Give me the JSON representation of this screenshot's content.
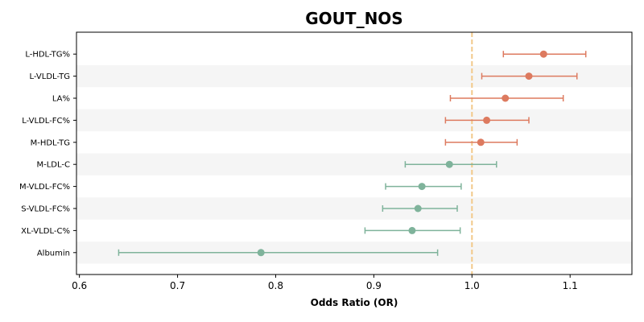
{
  "chart_data": {
    "type": "scatter",
    "subtype": "forest-plot",
    "title": "GOUT_NOS",
    "xlabel": "Odds Ratio (OR)",
    "ylabel": "",
    "xlim": [
      0.597,
      1.163
    ],
    "xticks": [
      0.6,
      0.7,
      0.8,
      0.9,
      1.0,
      1.1
    ],
    "xtick_labels": [
      "0.6",
      "0.7",
      "0.8",
      "0.9",
      "1.0",
      "1.1"
    ],
    "reference_line": 1.0,
    "reference_line_style": "dashed",
    "alternating_row_shading": true,
    "grid": false,
    "legend": "none",
    "colors": {
      "positive": "#dd7a5f",
      "negative": "#7fb39b",
      "reference": "#f2c98a",
      "band": "#f5f5f5"
    },
    "series": [
      {
        "categories": [
          "L-HDL-TG%",
          "L-VLDL-TG",
          "LA%",
          "L-VLDL-FC%",
          "M-HDL-TG",
          "M-LDL-C",
          "M-VLDL-FC%",
          "S-VLDL-FC%",
          "XL-VLDL-C%",
          "Albumin"
        ],
        "or": [
          1.073,
          1.058,
          1.034,
          1.015,
          1.009,
          0.977,
          0.949,
          0.945,
          0.939,
          0.785
        ],
        "ci_low": [
          1.032,
          1.01,
          0.978,
          0.973,
          0.973,
          0.932,
          0.912,
          0.909,
          0.891,
          0.64
        ],
        "ci_high": [
          1.116,
          1.107,
          1.093,
          1.058,
          1.046,
          1.025,
          0.989,
          0.985,
          0.988,
          0.965
        ]
      }
    ]
  }
}
